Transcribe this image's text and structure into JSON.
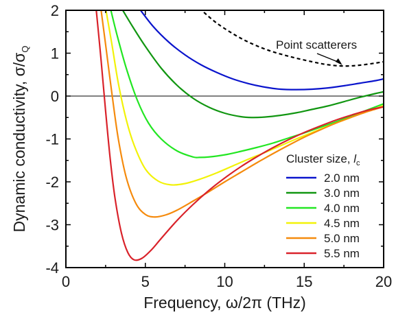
{
  "chart_data": {
    "type": "line",
    "xlabel": "Frequency, ω/2π (THz)",
    "ylabel_main": "Dynamic conductivity, σ/σ",
    "ylabel_sub": "Q",
    "xlim": [
      0,
      20
    ],
    "ylim": [
      -4,
      2
    ],
    "xticks": [
      0,
      5,
      10,
      15,
      20
    ],
    "yticks": [
      2,
      1,
      0,
      -1,
      -2,
      -3,
      -4
    ],
    "xtick_labels": [
      "0",
      "5",
      "10",
      "15",
      "20"
    ],
    "ytick_labels": [
      "2",
      "1",
      "0",
      "-1",
      "-2",
      "-3",
      "-4"
    ],
    "grid": false,
    "zero_line": true,
    "legend": {
      "title_main": "Cluster size, ",
      "title_var": "l",
      "title_sub": "c",
      "placement": "lower-right"
    },
    "annotations": [
      {
        "text": "Point scatterers",
        "target_series": "Point scatterers",
        "x": 17.4,
        "y": 0.72
      }
    ],
    "series": [
      {
        "name": "Point scatterers",
        "label": "",
        "color": "#000000",
        "dashed": true,
        "in_legend": false,
        "x": [
          8.4,
          9.5,
          11,
          12.5,
          14,
          15.5,
          16.5,
          17.5,
          18.5,
          19.5,
          20
        ],
        "y": [
          2.05,
          1.7,
          1.35,
          1.1,
          0.93,
          0.8,
          0.73,
          0.7,
          0.72,
          0.77,
          0.8
        ]
      },
      {
        "name": "2.0 nm",
        "label": "2.0 nm",
        "color": "#0a14cc",
        "dashed": false,
        "in_legend": true,
        "x": [
          4.6,
          5.5,
          6.5,
          7.5,
          8.5,
          9.5,
          10.5,
          11.5,
          12.5,
          13.5,
          14.5,
          15.5,
          16.5,
          17.5,
          18.5,
          19.5,
          20
        ],
        "y": [
          2.05,
          1.62,
          1.25,
          0.96,
          0.73,
          0.55,
          0.4,
          0.29,
          0.21,
          0.16,
          0.15,
          0.16,
          0.19,
          0.24,
          0.3,
          0.36,
          0.4
        ]
      },
      {
        "name": "3.0 nm",
        "label": "3.0 nm",
        "color": "#119611",
        "dashed": false,
        "in_legend": true,
        "x": [
          3.5,
          4.2,
          5,
          6,
          7,
          8,
          9,
          10,
          11,
          11.7,
          12.5,
          13.5,
          14.5,
          15.5,
          16.5,
          17.5,
          18.5,
          19.5,
          20
        ],
        "y": [
          2.05,
          1.62,
          1.16,
          0.65,
          0.25,
          -0.05,
          -0.26,
          -0.4,
          -0.48,
          -0.5,
          -0.49,
          -0.45,
          -0.39,
          -0.31,
          -0.23,
          -0.13,
          -0.03,
          0.06,
          0.1
        ]
      },
      {
        "name": "4.0 nm",
        "label": "4.0 nm",
        "color": "#22e622",
        "dashed": false,
        "in_legend": true,
        "x": [
          2.8,
          3.2,
          3.8,
          4.5,
          5.2,
          6,
          7,
          8,
          8.4,
          9,
          10,
          11,
          12,
          13,
          14,
          15,
          16,
          17,
          18,
          19,
          20
        ],
        "y": [
          2.05,
          1.45,
          0.65,
          -0.1,
          -0.63,
          -1.0,
          -1.28,
          -1.42,
          -1.43,
          -1.42,
          -1.37,
          -1.29,
          -1.2,
          -1.1,
          -0.98,
          -0.86,
          -0.73,
          -0.6,
          -0.46,
          -0.32,
          -0.18
        ]
      },
      {
        "name": "4.5 nm",
        "label": "4.5 nm",
        "color": "#f2f208",
        "dashed": false,
        "in_legend": true,
        "x": [
          2.5,
          2.9,
          3.3,
          3.8,
          4.3,
          5,
          5.8,
          6.6,
          7.5,
          8.5,
          9.5,
          10.5,
          11.5,
          12.5,
          13.5,
          14.5,
          15.5,
          16.5,
          17.5,
          18.5,
          19.5,
          20
        ],
        "y": [
          2.05,
          1.2,
          0.3,
          -0.55,
          -1.15,
          -1.7,
          -1.98,
          -2.07,
          -2.04,
          -1.93,
          -1.79,
          -1.63,
          -1.47,
          -1.32,
          -1.16,
          -1.0,
          -0.85,
          -0.7,
          -0.56,
          -0.42,
          -0.29,
          -0.22
        ]
      },
      {
        "name": "5.0 nm",
        "label": "5.0 nm",
        "color": "#f58a0c",
        "dashed": false,
        "in_legend": true,
        "x": [
          2.2,
          2.5,
          2.9,
          3.3,
          3.8,
          4.4,
          5,
          5.6,
          6.3,
          7,
          8,
          9,
          10,
          11,
          12,
          13,
          14,
          15,
          16,
          17,
          18,
          19,
          20
        ],
        "y": [
          2.05,
          1.2,
          0.05,
          -1.0,
          -1.9,
          -2.5,
          -2.76,
          -2.82,
          -2.77,
          -2.66,
          -2.45,
          -2.23,
          -2.0,
          -1.78,
          -1.56,
          -1.35,
          -1.15,
          -0.96,
          -0.79,
          -0.63,
          -0.49,
          -0.36,
          -0.25
        ]
      },
      {
        "name": "5.5 nm",
        "label": "5.5 nm",
        "color": "#d9222a",
        "dashed": false,
        "in_legend": true,
        "x": [
          1.9,
          2.2,
          2.5,
          2.8,
          3.1,
          3.5,
          3.9,
          4.3,
          4.8,
          5.4,
          6,
          7,
          8,
          9,
          10,
          11,
          12,
          13,
          14,
          15,
          16,
          17,
          18,
          19,
          20
        ],
        "y": [
          2.05,
          0.9,
          -0.35,
          -1.5,
          -2.4,
          -3.2,
          -3.65,
          -3.82,
          -3.78,
          -3.58,
          -3.32,
          -2.9,
          -2.53,
          -2.2,
          -1.91,
          -1.65,
          -1.42,
          -1.21,
          -1.02,
          -0.85,
          -0.7,
          -0.56,
          -0.44,
          -0.33,
          -0.25
        ]
      }
    ]
  }
}
